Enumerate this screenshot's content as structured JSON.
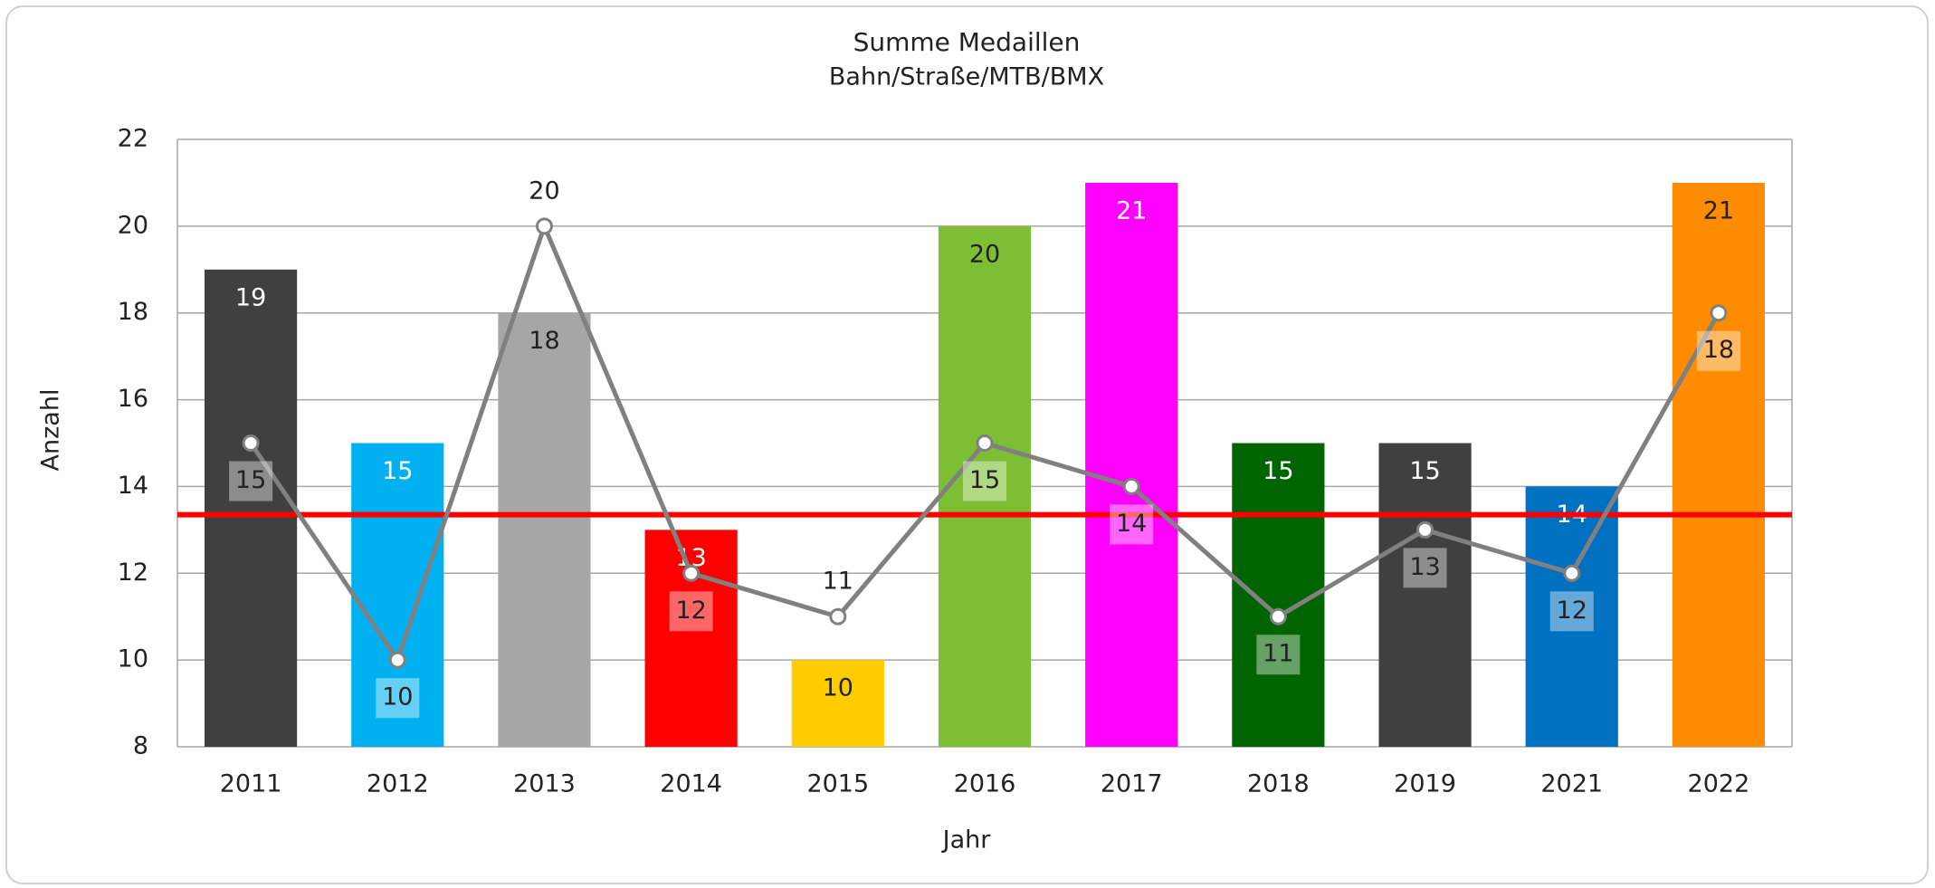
{
  "chart_data": {
    "type": "bar_line",
    "title": "Summe Medaillen",
    "subtitle": "Bahn/Straße/MTB/BMX",
    "x_label": "Jahr",
    "y_label": "Anzahl",
    "categories": [
      "2011",
      "2012",
      "2013",
      "2014",
      "2015",
      "2016",
      "2017",
      "2018",
      "2019",
      "2021",
      "2022"
    ],
    "series": [
      {
        "type": "bar",
        "colors": [
          "#404040",
          "#00b0f0",
          "#a6a6a6",
          "#ff0000",
          "#ffcc00",
          "#7dbe35",
          "#ff00ff",
          "#006400",
          "#404040",
          "#0070c0",
          "#ff8c00"
        ],
        "values": [
          19,
          15,
          18,
          13,
          10,
          20,
          21,
          15,
          15,
          14,
          21
        ]
      },
      {
        "type": "line",
        "color": "#808080",
        "values": [
          15,
          10,
          20,
          12,
          11,
          15,
          14,
          11,
          13,
          12,
          18
        ]
      }
    ],
    "reference_line": {
      "value": 13.35,
      "color": "#ff0000"
    },
    "ylim": [
      8,
      22
    ],
    "yticks": [
      8,
      10,
      12,
      14,
      16,
      18,
      20,
      22
    ],
    "grid": true
  }
}
